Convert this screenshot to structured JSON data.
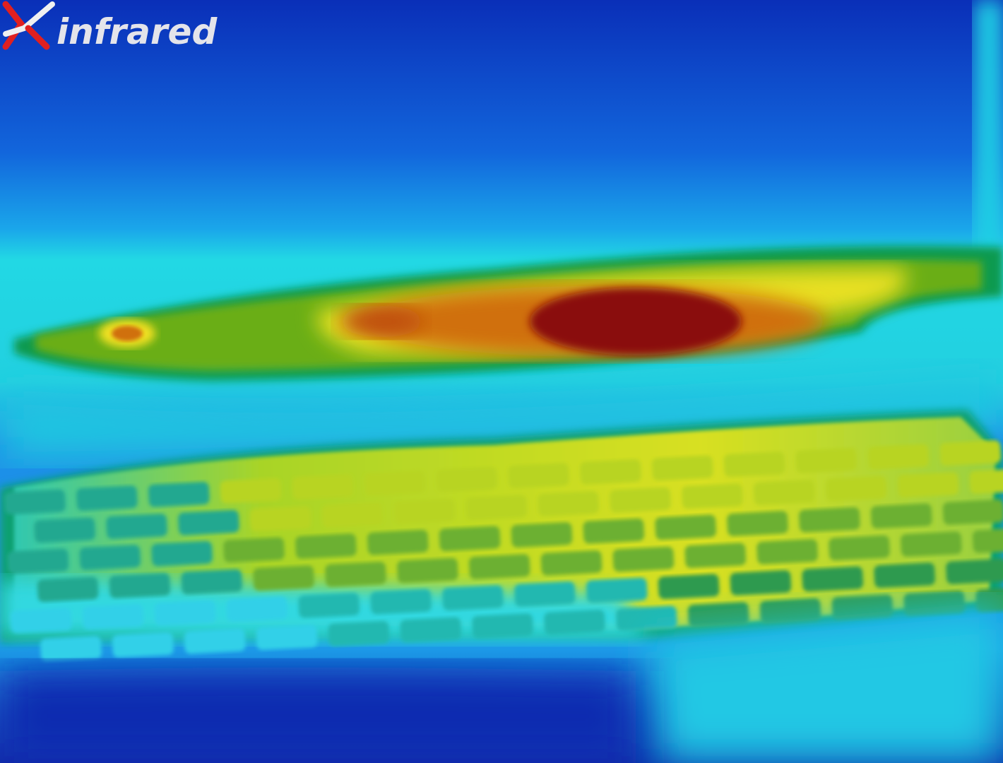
{
  "logo": {
    "text": "infrared"
  }
}
